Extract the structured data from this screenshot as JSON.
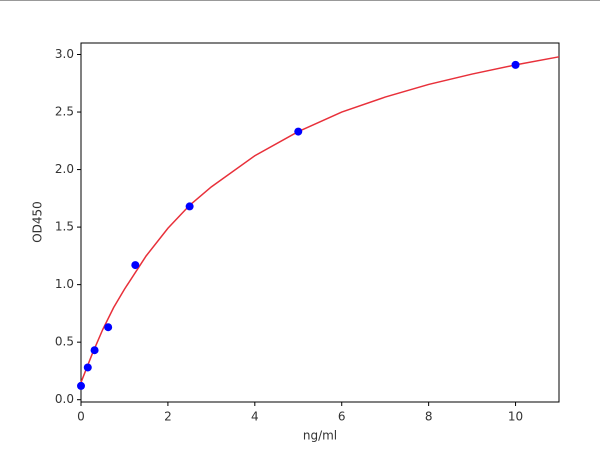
{
  "chart_data": {
    "type": "scatter",
    "xlabel": "ng/ml",
    "ylabel": "OD450",
    "xlim": [
      0,
      11
    ],
    "xticks": [
      0,
      2,
      4,
      6,
      8,
      10
    ],
    "ylim": [
      -0.02,
      3.1
    ],
    "yticks": [
      {
        "value": 0,
        "label": "0.0"
      },
      {
        "value": 0.5,
        "label": "0.5"
      },
      {
        "value": 1,
        "label": "1.0"
      },
      {
        "value": 1.5,
        "label": "1.5"
      },
      {
        "value": 2,
        "label": "2.0"
      },
      {
        "value": 2.5,
        "label": "2.5"
      },
      {
        "value": 3,
        "label": "3.0"
      }
    ],
    "series": [
      {
        "type": "line",
        "color": "#e8303a",
        "x": [
          0,
          0.25,
          0.5,
          0.75,
          1,
          1.5,
          2,
          2.5,
          3,
          4,
          5,
          6,
          7,
          8,
          9,
          10,
          11
        ],
        "values": [
          0.15,
          0.39,
          0.61,
          0.8,
          0.96,
          1.25,
          1.49,
          1.69,
          1.85,
          2.12,
          2.33,
          2.5,
          2.63,
          2.74,
          2.83,
          2.91,
          2.98
        ]
      },
      {
        "type": "scatter",
        "color": "#0000ff",
        "x": [
          0,
          0.156,
          0.3125,
          0.625,
          1.25,
          2.5,
          5,
          10
        ],
        "values": [
          0.12,
          0.28,
          0.43,
          0.63,
          1.17,
          1.68,
          2.33,
          2.91
        ]
      }
    ]
  }
}
